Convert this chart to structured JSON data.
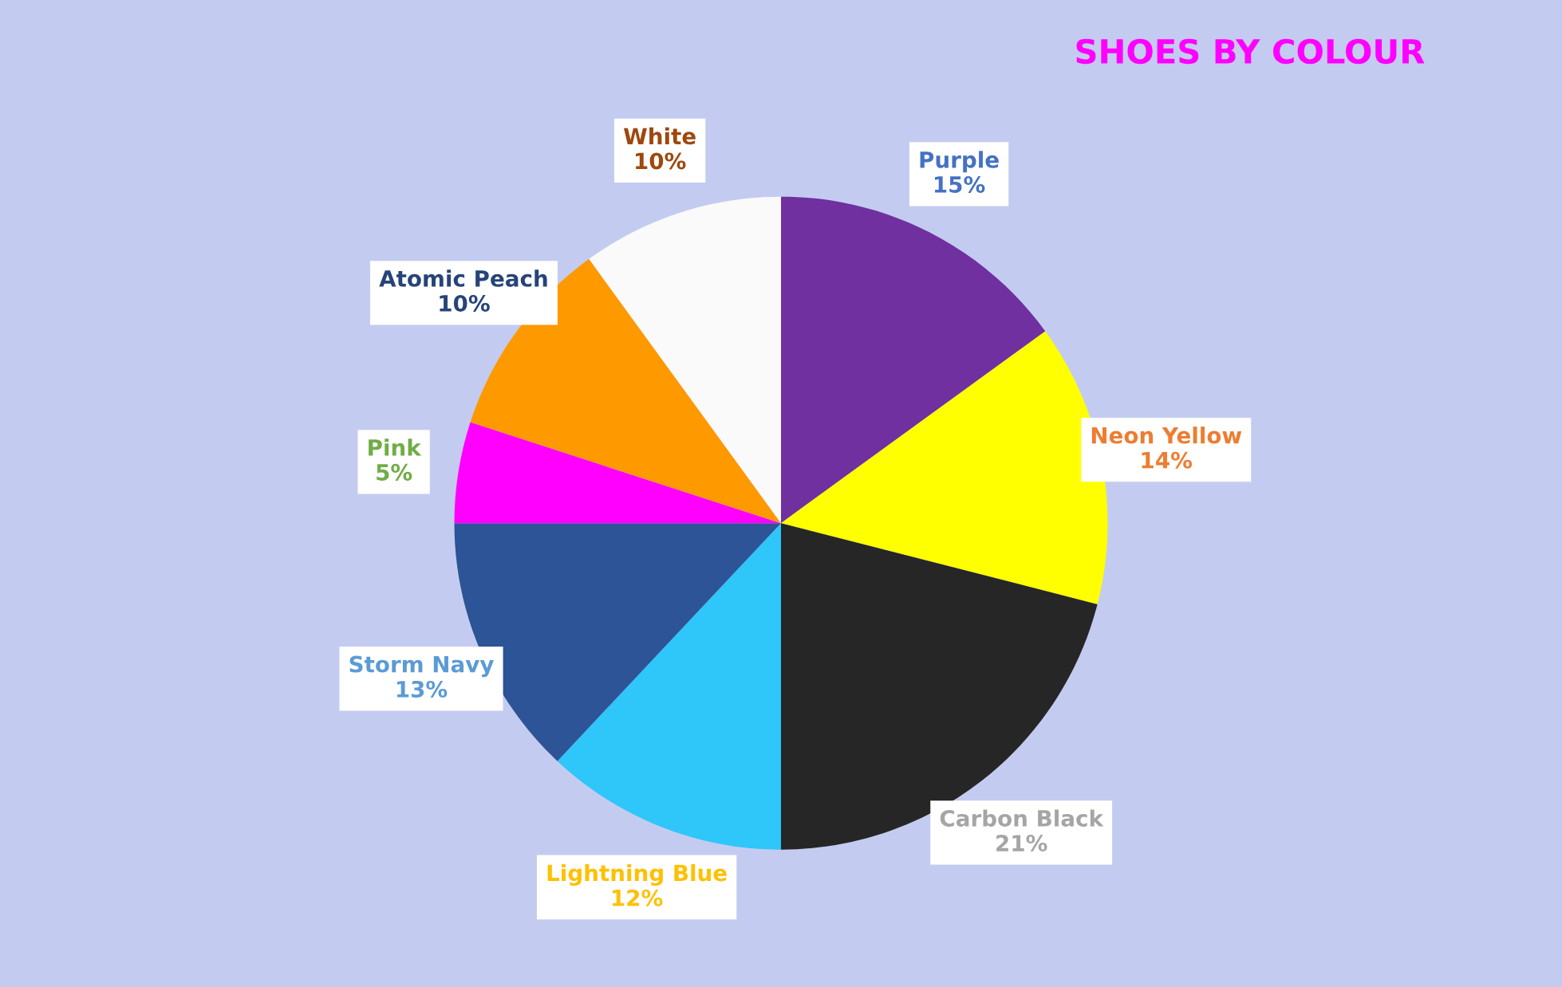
{
  "chart_data": {
    "type": "pie",
    "title": "SHOES BY COLOUR",
    "categories": [
      "Purple",
      "Neon Yellow",
      "Carbon Black",
      "Lightning Blue",
      "Storm Navy",
      "Pink",
      "Atomic Peach",
      "White"
    ],
    "values": [
      15,
      14,
      21,
      12,
      13,
      5,
      10,
      10
    ],
    "value_labels": [
      "15%",
      "14%",
      "21%",
      "12%",
      "13%",
      "5%",
      "10%",
      "10%"
    ],
    "colors": [
      "#7030a0",
      "#ffff00",
      "#262626",
      "#2fc6f9",
      "#2c5496",
      "#ff00ff",
      "#ff9900",
      "#fafafa"
    ],
    "legend": false
  }
}
